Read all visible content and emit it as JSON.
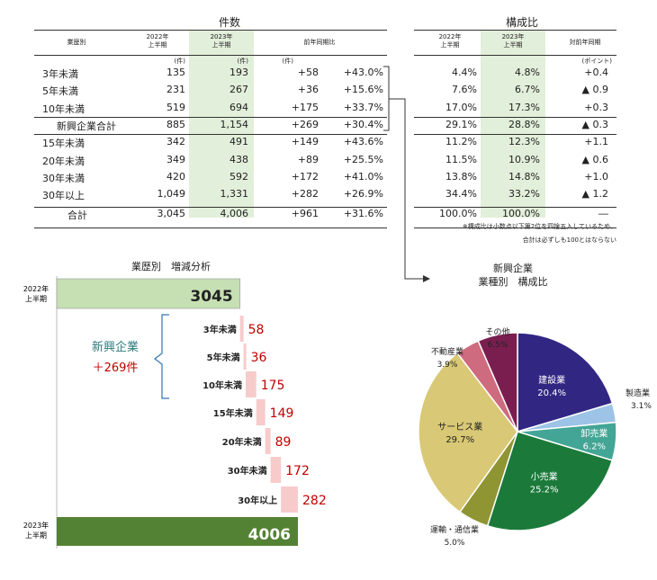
{
  "table_left": {
    "title": "件数",
    "header": {
      "col0": "業歴別",
      "col1": "2022年\n上半期",
      "col2": "2023年\n上半期",
      "col3": "前年同期比"
    },
    "units": {
      "col1": "(件)",
      "col2": "(件)",
      "col3": "(件)"
    },
    "rows": [
      {
        "label": "3年未満",
        "v2022": "135",
        "v2023": "193",
        "diff": "+58",
        "pct": "+43.0%"
      },
      {
        "label": "5年未満",
        "v2022": "231",
        "v2023": "267",
        "diff": "+36",
        "pct": "+15.6%"
      },
      {
        "label": "10年未満",
        "v2022": "519",
        "v2023": "694",
        "diff": "+175",
        "pct": "+33.7%"
      },
      {
        "label": "新興企業合計",
        "v2022": "885",
        "v2023": "1,154",
        "diff": "+269",
        "pct": "+30.4%"
      },
      {
        "label": "15年未満",
        "v2022": "342",
        "v2023": "491",
        "diff": "+149",
        "pct": "+43.6%"
      },
      {
        "label": "20年未満",
        "v2022": "349",
        "v2023": "438",
        "diff": "+89",
        "pct": "+25.5%"
      },
      {
        "label": "30年未満",
        "v2022": "420",
        "v2023": "592",
        "diff": "+172",
        "pct": "+41.0%"
      },
      {
        "label": "30年以上",
        "v2022": "1,049",
        "v2023": "1,331",
        "diff": "+282",
        "pct": "+26.9%"
      },
      {
        "label": "合計",
        "v2022": "3,045",
        "v2023": "4,006",
        "diff": "+961",
        "pct": "+31.6%"
      }
    ]
  },
  "table_right": {
    "title": "構成比",
    "header": {
      "col1": "2022年\n上半期",
      "col2": "2023年\n上半期",
      "col3": "対前年同期"
    },
    "units": {
      "col3": "(ポイント)"
    },
    "rows": [
      {
        "v2022": "4.4%",
        "v2023": "4.8%",
        "diff": "+0.4"
      },
      {
        "v2022": "7.6%",
        "v2023": "6.7%",
        "diff": "▲ 0.9"
      },
      {
        "v2022": "17.0%",
        "v2023": "17.3%",
        "diff": "+0.3"
      },
      {
        "v2022": "29.1%",
        "v2023": "28.8%",
        "diff": "▲ 0.3"
      },
      {
        "v2022": "11.2%",
        "v2023": "12.3%",
        "diff": "+1.1"
      },
      {
        "v2022": "11.5%",
        "v2023": "10.9%",
        "diff": "▲ 0.6"
      },
      {
        "v2022": "13.8%",
        "v2023": "14.8%",
        "diff": "+1.0"
      },
      {
        "v2022": "34.4%",
        "v2023": "33.2%",
        "diff": "▲ 1.2"
      },
      {
        "v2022": "100.0%",
        "v2023": "100.0%",
        "diff": "―"
      }
    ],
    "notes": [
      "※構成比は小数点以下第2位を四捨五入しているため、",
      "合計は必ずしも100とはならない"
    ]
  },
  "chart_data": [
    {
      "type": "waterfall",
      "title": "業歴別　増減分析",
      "start": {
        "label": "2022年\n上半期",
        "value": 3045
      },
      "end": {
        "label": "2023年\n上半期",
        "value": 4006
      },
      "categories": [
        "3年未満",
        "5年未満",
        "10年未満",
        "15年未満",
        "20年未満",
        "30年未満",
        "30年以上"
      ],
      "values": [
        58,
        36,
        175,
        149,
        89,
        172,
        282
      ],
      "annotation": {
        "line1": "新興企業",
        "line2": "＋269件"
      },
      "colors": {
        "start": "#c6e0b4",
        "end": "#548235",
        "increase": "#f8cbcb",
        "value_text": "#c00000"
      }
    },
    {
      "type": "pie",
      "title_line1": "新興企業",
      "title_line2": "業種別　構成比",
      "slices": [
        {
          "name": "建設業",
          "value": 20.4,
          "label": "20.4%",
          "color": "#312783"
        },
        {
          "name": "製造業",
          "value": 3.1,
          "label": "3.1%",
          "color": "#9dc3e6"
        },
        {
          "name": "卸売業",
          "value": 6.2,
          "label": "6.2%",
          "color": "#43a595"
        },
        {
          "name": "小売業",
          "value": 25.2,
          "label": "25.2%",
          "color": "#1b7a3a"
        },
        {
          "name": "運輸・通信業",
          "value": 5.0,
          "label": "5.0%",
          "color": "#8f9533"
        },
        {
          "name": "サービス業",
          "value": 29.7,
          "label": "29.7%",
          "color": "#d9c875"
        },
        {
          "name": "不動産業",
          "value": 3.9,
          "label": "3.9%",
          "color": "#cf6b7e"
        },
        {
          "name": "その他",
          "value": 6.5,
          "label": "6.5%",
          "color": "#7a1e50"
        }
      ]
    }
  ]
}
